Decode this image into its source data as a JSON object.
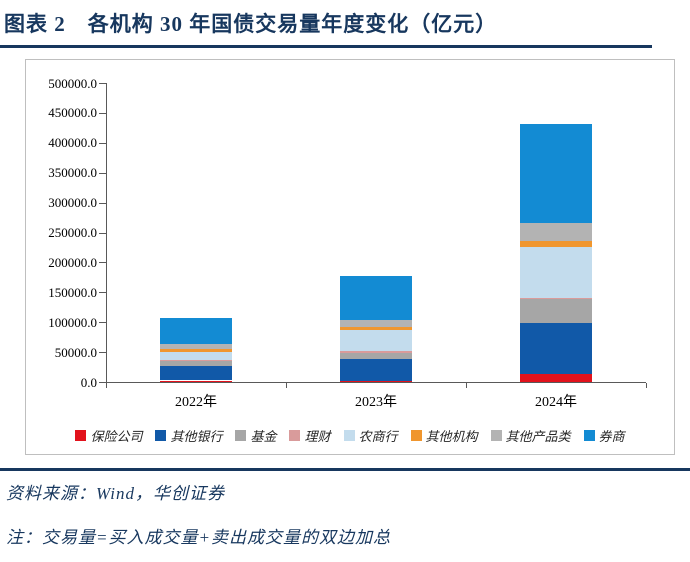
{
  "page": {
    "title": "图表 2　各机构 30 年国债交易量年度变化（亿元）",
    "source": "资料来源：Wind，华创证券",
    "note": "注：交易量=买入成交量+卖出成交量的双边加总"
  },
  "colors": {
    "accent_navy": "#17375e",
    "chart_border": "#bfbfbf",
    "axis": "#595959"
  },
  "chart_data": {
    "type": "bar",
    "stacked": true,
    "title": "各机构30年国债交易量年度变化（亿元）",
    "categories": [
      "2022年",
      "2023年",
      "2024年"
    ],
    "series": [
      {
        "name": "保险公司",
        "color": "#e2121c",
        "values": [
          2500,
          2200,
          14000
        ]
      },
      {
        "name": "其他银行",
        "color": "#1159a8",
        "values": [
          23500,
          36000,
          85000
        ]
      },
      {
        "name": "基金",
        "color": "#a6a6a6",
        "values": [
          8500,
          11000,
          39000
        ]
      },
      {
        "name": "理财",
        "color": "#d99b9b",
        "values": [
          2500,
          2000,
          2000
        ]
      },
      {
        "name": "农商行",
        "color": "#c3dced",
        "values": [
          14000,
          35000,
          86000
        ]
      },
      {
        "name": "其他机构",
        "color": "#f0962e",
        "values": [
          4000,
          5500,
          10000
        ]
      },
      {
        "name": "其他产品类",
        "color": "#b3b3b3",
        "values": [
          9000,
          12000,
          30000
        ]
      },
      {
        "name": "券商",
        "color": "#138bd3",
        "values": [
          42500,
          74000,
          165000
        ]
      }
    ],
    "totals": [
      106500,
      177700,
      431000
    ],
    "ylim": [
      0,
      500000
    ],
    "ytick_step": 50000,
    "ytick_format_decimals": 1,
    "grid": false,
    "legend_position": "bottom"
  }
}
